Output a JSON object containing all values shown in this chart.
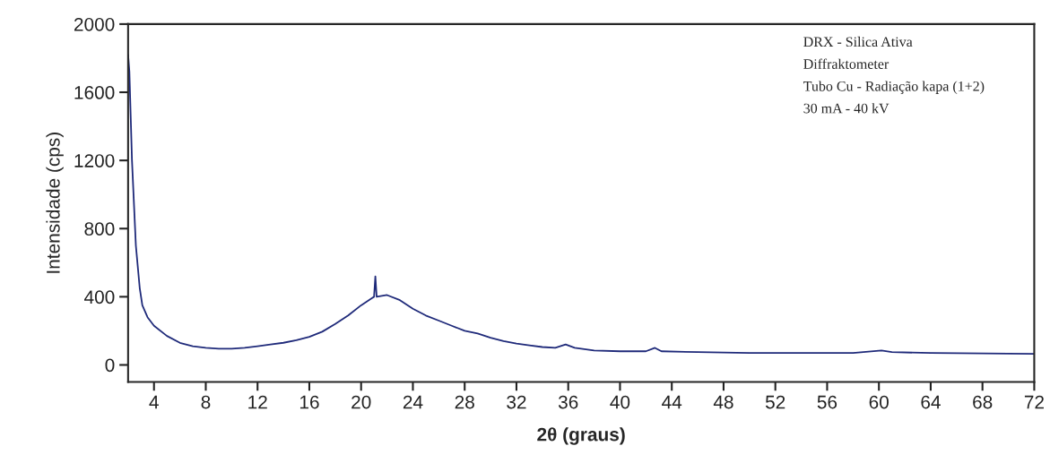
{
  "chart_data": {
    "type": "line",
    "xlabel": "2θ (graus)",
    "ylabel": "Intensidade (cps)",
    "annotations": [
      "DRX - Silica Ativa",
      "Diffraktometer",
      "Tubo Cu - Radiação kapa (1+2)",
      "30 mA - 40 kV"
    ],
    "x": [
      2.0,
      2.1,
      2.3,
      2.6,
      2.9,
      3.1,
      3.5,
      4,
      5,
      6,
      7,
      8,
      9,
      10,
      11,
      12,
      13,
      14,
      15,
      16,
      17,
      18,
      19,
      20,
      20.8,
      21.0,
      21.1,
      21.2,
      22,
      23,
      24,
      25,
      26,
      27,
      28,
      29,
      30,
      31,
      32,
      33,
      34,
      35,
      35.8,
      36.5,
      38,
      40,
      42,
      42.7,
      43.2,
      46,
      50,
      54,
      58,
      60.2,
      61,
      64,
      68,
      72
    ],
    "series": [
      {
        "color": "#1f2a7a",
        "values": [
          1820,
          1720,
          1200,
          700,
          450,
          350,
          280,
          230,
          170,
          130,
          110,
          100,
          95,
          95,
          100,
          110,
          120,
          130,
          145,
          165,
          195,
          240,
          290,
          350,
          390,
          400,
          520,
          400,
          410,
          380,
          330,
          290,
          260,
          230,
          200,
          185,
          160,
          140,
          125,
          115,
          105,
          100,
          120,
          100,
          85,
          80,
          80,
          100,
          80,
          75,
          70,
          70,
          70,
          85,
          75,
          70,
          68,
          65
        ]
      }
    ],
    "xlim": [
      2,
      72
    ],
    "xticks": [
      4,
      8,
      12,
      16,
      20,
      24,
      28,
      32,
      36,
      40,
      44,
      48,
      52,
      56,
      60,
      64,
      68,
      72
    ],
    "ylim": [
      -100,
      2000
    ],
    "yticks": [
      0,
      400,
      800,
      1200,
      1600,
      2000
    ],
    "grid": false
  }
}
